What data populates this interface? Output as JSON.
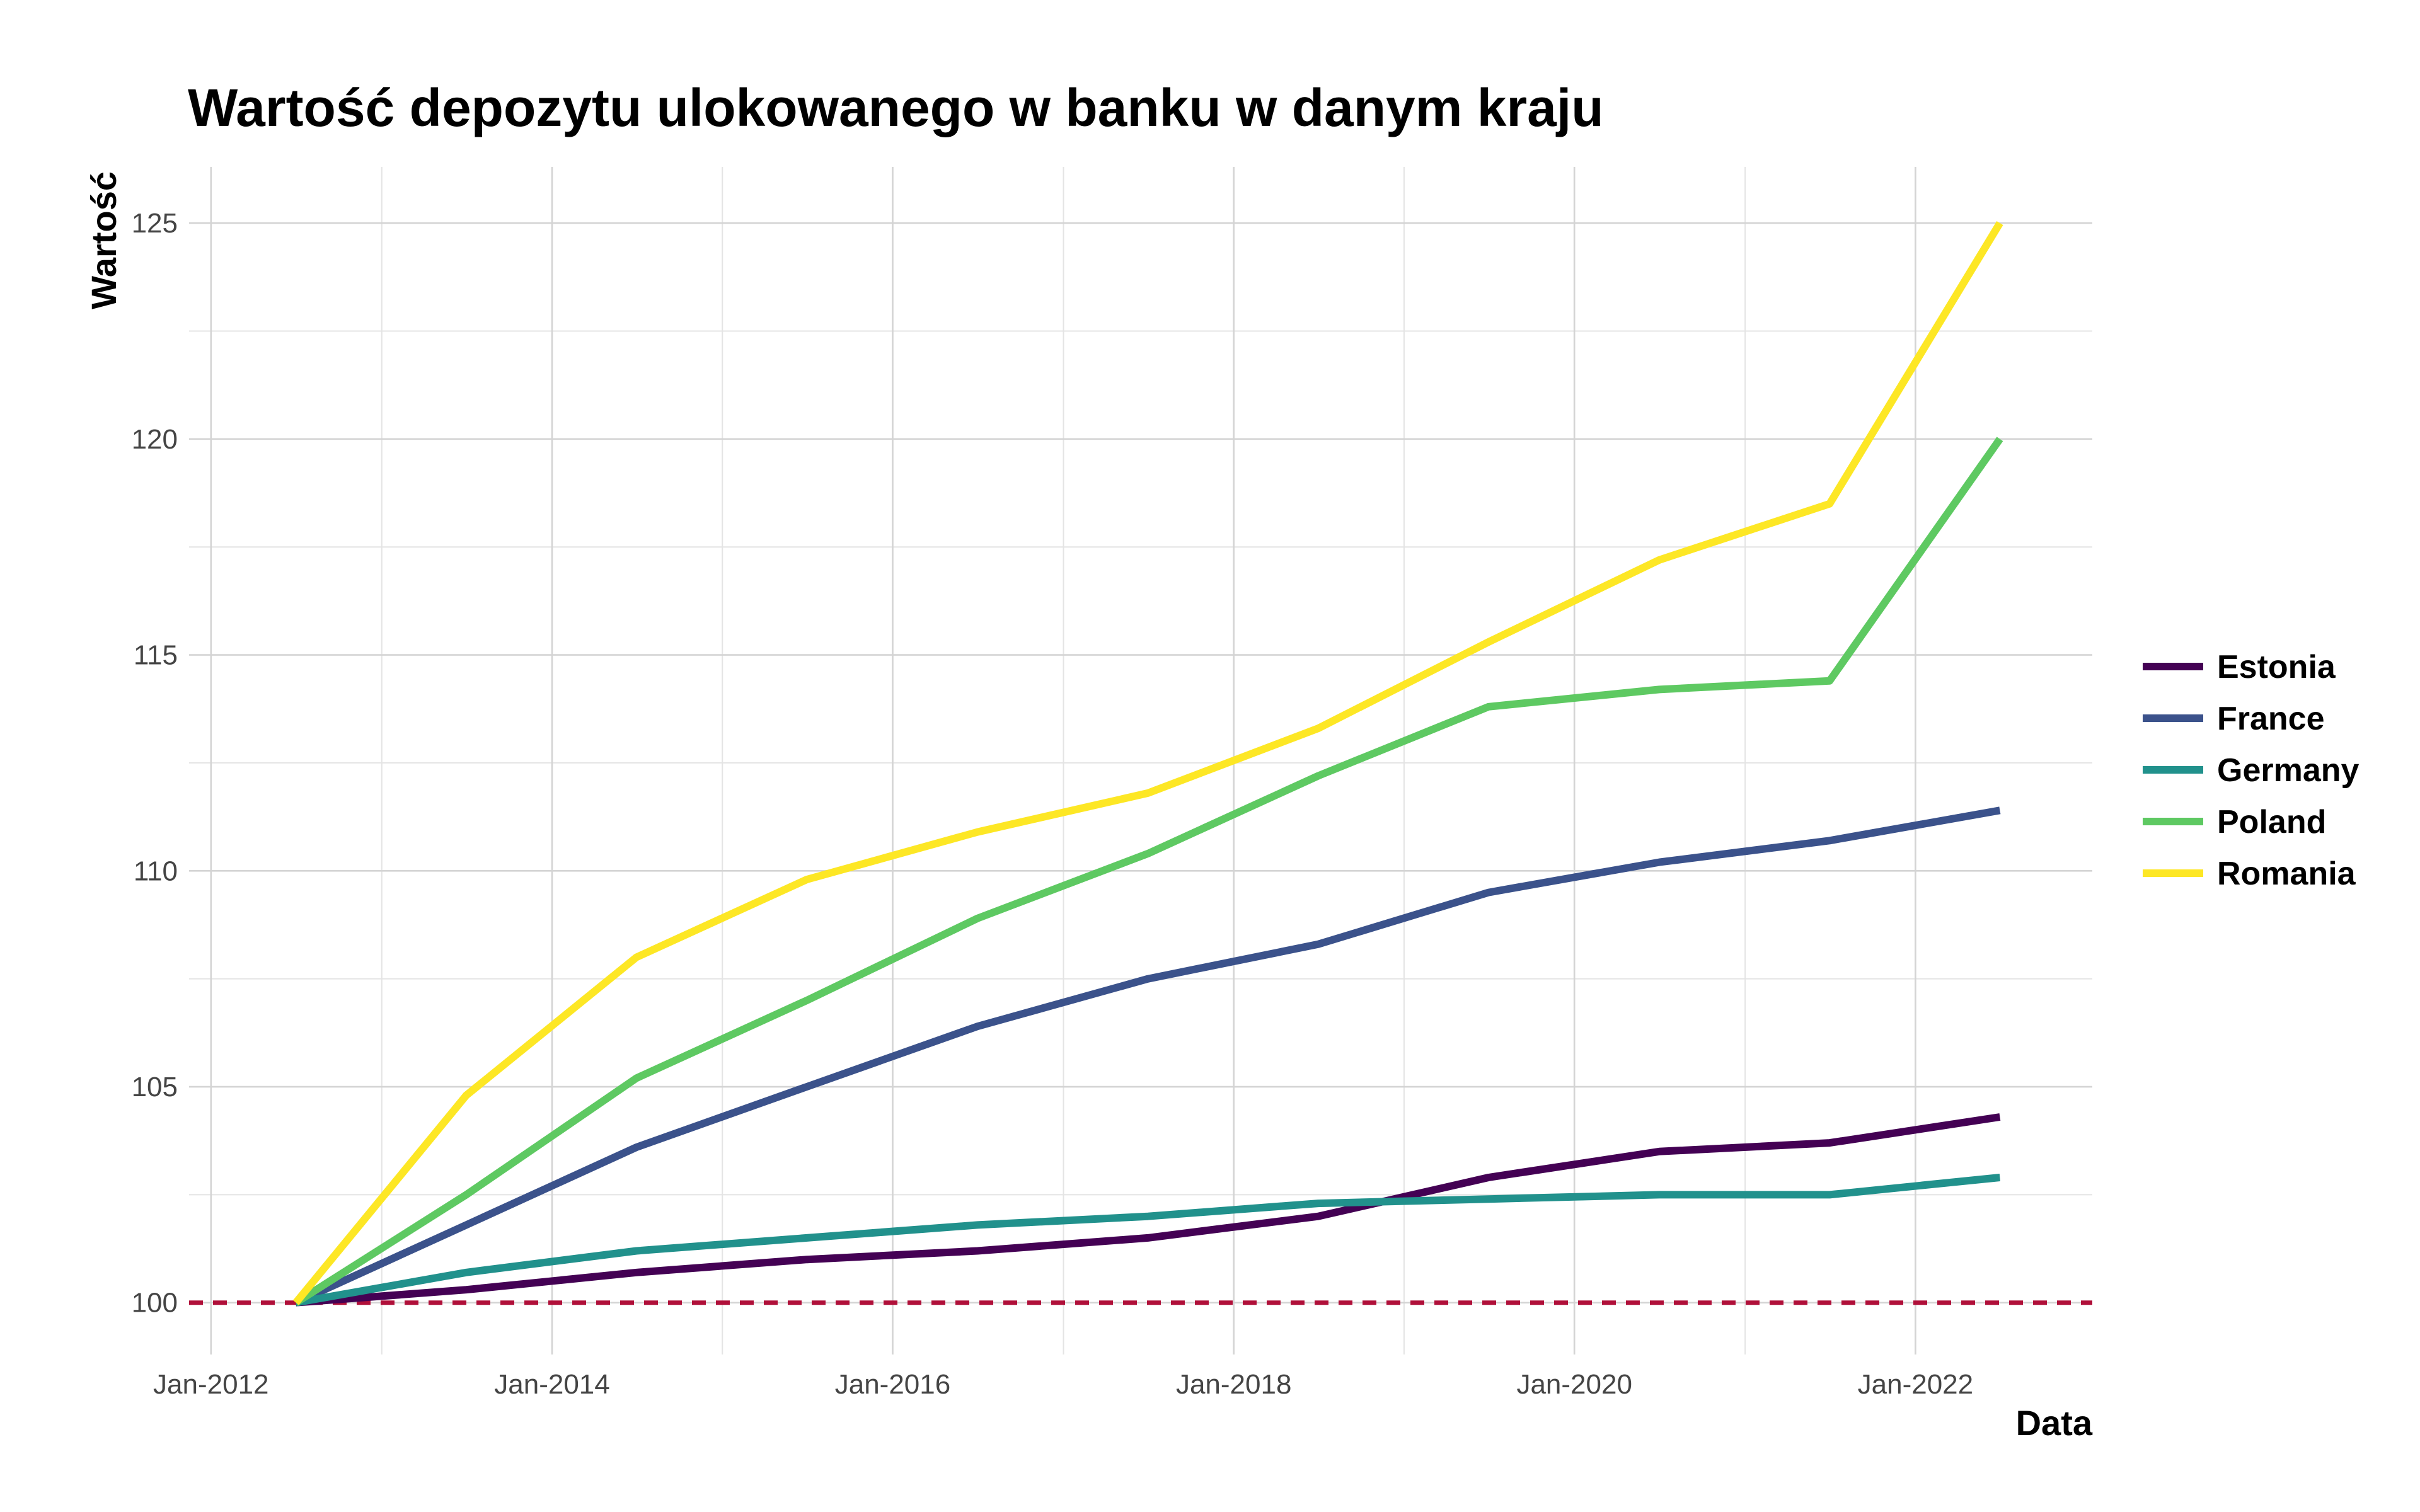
{
  "chart_data": {
    "type": "line",
    "title": "Wartość depozytu ulokowanego w banku w danym kraju",
    "xlabel": "Data",
    "ylabel": "Wartość",
    "x": [
      "2012-07-01",
      "2013-07-01",
      "2014-07-01",
      "2015-07-01",
      "2016-07-01",
      "2017-07-01",
      "2018-07-01",
      "2019-07-01",
      "2020-07-01",
      "2021-07-01",
      "2022-07-01"
    ],
    "x_ticks": [
      {
        "date": "2012-01-01",
        "label": "Jan-2012"
      },
      {
        "date": "2014-01-01",
        "label": "Jan-2014"
      },
      {
        "date": "2016-01-01",
        "label": "Jan-2016"
      },
      {
        "date": "2018-01-01",
        "label": "Jan-2018"
      },
      {
        "date": "2020-01-01",
        "label": "Jan-2020"
      },
      {
        "date": "2022-01-01",
        "label": "Jan-2022"
      }
    ],
    "x_minor_ticks": [
      "2013-01-01",
      "2015-01-01",
      "2017-01-01",
      "2019-01-01",
      "2021-01-01"
    ],
    "xlim": [
      "2011-11-15",
      "2023-01-15"
    ],
    "y_ticks": [
      100,
      105,
      110,
      115,
      120,
      125
    ],
    "ylim": [
      98.8,
      126.3
    ],
    "grid": true,
    "legend_position": "right",
    "reference_line": {
      "y": 100,
      "color": "#b0103a",
      "style": "dashed"
    },
    "series": [
      {
        "name": "Estonia",
        "color": "#440154",
        "values": [
          100,
          100.3,
          100.7,
          101.0,
          101.2,
          101.5,
          102.0,
          102.9,
          103.5,
          103.7,
          104.3
        ]
      },
      {
        "name": "France",
        "color": "#3b528b",
        "values": [
          100,
          101.8,
          103.6,
          105.0,
          106.4,
          107.5,
          108.3,
          109.5,
          110.2,
          110.7,
          111.4
        ]
      },
      {
        "name": "Germany",
        "color": "#21918c",
        "values": [
          100,
          100.7,
          101.2,
          101.5,
          101.8,
          102.0,
          102.3,
          102.4,
          102.5,
          102.5,
          102.9
        ]
      },
      {
        "name": "Poland",
        "color": "#5ec962",
        "values": [
          100,
          102.5,
          105.2,
          107.0,
          108.9,
          110.4,
          112.2,
          113.8,
          114.2,
          114.4,
          120.0
        ]
      },
      {
        "name": "Romania",
        "color": "#fde725",
        "values": [
          100,
          104.8,
          108.0,
          109.8,
          110.9,
          111.8,
          113.3,
          115.3,
          117.2,
          118.5,
          125.0
        ]
      }
    ]
  }
}
